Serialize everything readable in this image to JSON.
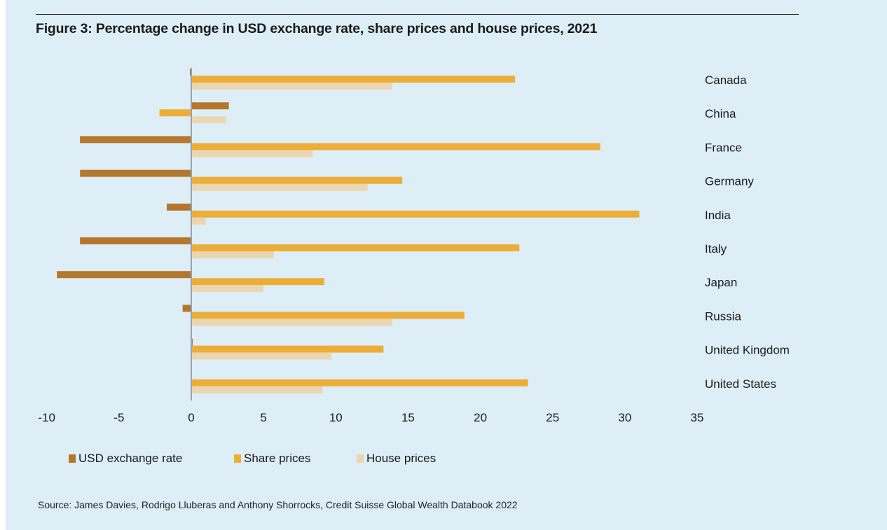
{
  "chart_data": {
    "type": "bar",
    "orientation": "horizontal",
    "title": "Figure 3: Percentage change in USD exchange rate, share prices and house prices, 2021",
    "xlabel": "",
    "ylabel": "",
    "xlim": [
      -10,
      35
    ],
    "x_ticks": [
      -10,
      -5,
      0,
      5,
      10,
      15,
      20,
      25,
      30,
      35
    ],
    "grid": false,
    "legend_position": "bottom-left",
    "categories": [
      "Canada",
      "China",
      "France",
      "Germany",
      "India",
      "Italy",
      "Japan",
      "Russia",
      "United Kingdom",
      "United States"
    ],
    "series": [
      {
        "name": "USD exchange rate",
        "color": "#b5772c",
        "values": [
          -0.1,
          2.6,
          -7.7,
          -7.7,
          -1.7,
          -7.7,
          -9.3,
          -0.6,
          0.1,
          0.0
        ]
      },
      {
        "name": "Share prices",
        "color": "#ecae38",
        "values": [
          22.4,
          -2.2,
          28.3,
          14.6,
          31.0,
          22.7,
          9.2,
          18.9,
          13.3,
          23.3
        ]
      },
      {
        "name": "House prices",
        "color": "#ebd6b2",
        "values": [
          13.9,
          2.4,
          8.4,
          12.2,
          1.0,
          5.7,
          5.0,
          13.9,
          9.7,
          9.1
        ]
      }
    ],
    "source": "Source: James Davies, Rodrigo Lluberas and Anthony Shorrocks, Credit Suisse Global Wealth Databook 2022"
  },
  "colors": {
    "background": "#deeef7",
    "axis": "#9aa3ab",
    "text": "#1a1a1a"
  }
}
